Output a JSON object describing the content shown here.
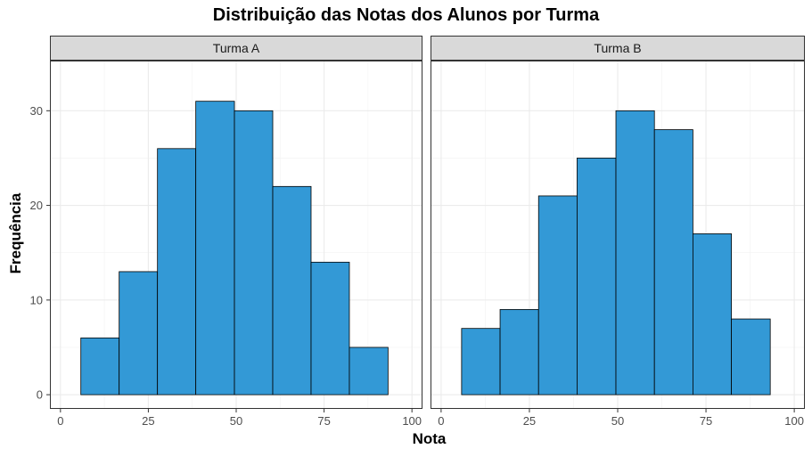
{
  "chart_data": {
    "type": "bar",
    "title": "Distribuição das Notas dos Alunos por Turma",
    "xlabel": "Nota",
    "ylabel": "Frequência",
    "xlim": [
      -3,
      103
    ],
    "ylim": [
      -1.5,
      35.3
    ],
    "x_ticks": [
      0,
      25,
      50,
      75,
      100
    ],
    "y_ticks": [
      0,
      10,
      20,
      30
    ],
    "grid": true,
    "bar_color": "#3399D6",
    "bar_edge_color": "#000000",
    "strip_color": "#D9D9D9",
    "panels": [
      {
        "label": "Turma A",
        "bins": [
          [
            5.8,
            16.7
          ],
          [
            16.7,
            27.6
          ],
          [
            27.6,
            38.5
          ],
          [
            38.5,
            49.5
          ],
          [
            49.5,
            60.4
          ],
          [
            60.4,
            71.3
          ],
          [
            71.3,
            82.2
          ],
          [
            82.2,
            93.2
          ]
        ],
        "values": [
          6,
          13,
          26,
          31,
          30,
          22,
          14,
          5
        ]
      },
      {
        "label": "Turma B",
        "bins": [
          [
            5.8,
            16.7
          ],
          [
            16.7,
            27.6
          ],
          [
            27.6,
            38.5
          ],
          [
            38.5,
            49.5
          ],
          [
            49.5,
            60.4
          ],
          [
            60.4,
            71.3
          ],
          [
            71.3,
            82.2
          ],
          [
            82.2,
            93.2
          ]
        ],
        "values": [
          7,
          9,
          21,
          25,
          30,
          28,
          17,
          8
        ]
      }
    ]
  }
}
